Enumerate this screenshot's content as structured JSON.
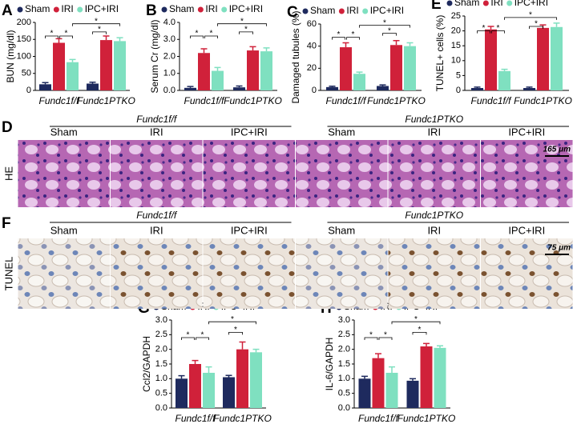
{
  "chart_data": [
    {
      "type": "bar",
      "panel": "A",
      "y_label": "BUN (mg/dl)",
      "categories": [
        "Fundc1f/f",
        "Fundc1PTKO"
      ],
      "significance": "*",
      "ylim": [
        0,
        200
      ],
      "yticks": [
        0,
        50,
        100,
        150,
        200
      ],
      "series": [
        {
          "name": "Sham",
          "color": "#1e2a5e",
          "values": [
            18,
            20
          ],
          "errors": [
            5,
            4
          ]
        },
        {
          "name": "IRI",
          "color": "#d0213a",
          "values": [
            140,
            148
          ],
          "errors": [
            12,
            12
          ]
        },
        {
          "name": "IPC+IRI",
          "color": "#7fe0c0",
          "values": [
            83,
            145
          ],
          "errors": [
            8,
            10
          ]
        }
      ]
    },
    {
      "type": "bar",
      "panel": "B",
      "y_label": "Serum Cr (mg/dl)",
      "categories": [
        "Fundc1f/f",
        "Fundc1PTKO"
      ],
      "significance": "*",
      "ylim": [
        0,
        4
      ],
      "yticks": [
        {
          "value": 0,
          "label": "0.0"
        },
        {
          "value": 1,
          "label": "1.0"
        },
        {
          "value": 2,
          "label": "2.0"
        },
        {
          "value": 3,
          "label": "3.0"
        },
        {
          "value": 4,
          "label": "4.0"
        }
      ],
      "series": [
        {
          "name": "Sham",
          "color": "#1e2a5e",
          "values": [
            0.15,
            0.18
          ],
          "errors": [
            0.08,
            0.08
          ]
        },
        {
          "name": "IRI",
          "color": "#d0213a",
          "values": [
            2.2,
            2.35
          ],
          "errors": [
            0.25,
            0.22
          ]
        },
        {
          "name": "IPC+IRI",
          "color": "#7fe0c0",
          "values": [
            1.15,
            2.3
          ],
          "errors": [
            0.2,
            0.2
          ]
        }
      ]
    },
    {
      "type": "bar",
      "panel": "C",
      "y_label": "Damaged tubules (%)",
      "categories": [
        "Fundc1f/f",
        "Fundc1PTKO"
      ],
      "significance": "*",
      "ylim": [
        0,
        60
      ],
      "yticks": [
        0,
        20,
        40,
        60
      ],
      "series": [
        {
          "name": "Sham",
          "color": "#1e2a5e",
          "values": [
            3,
            4
          ],
          "errors": [
            0.8,
            1
          ]
        },
        {
          "name": "IRI",
          "color": "#d0213a",
          "values": [
            39,
            41
          ],
          "errors": [
            4,
            4
          ]
        },
        {
          "name": "IPC+IRI",
          "color": "#7fe0c0",
          "values": [
            15,
            40
          ],
          "errors": [
            1.5,
            3
          ]
        }
      ]
    },
    {
      "type": "bar",
      "panel": "E",
      "y_label": "TUNEL+ cells (%)",
      "categories": [
        "Fundc1f/f",
        "Fundc1PTKO"
      ],
      "significance": "*",
      "ylim": [
        0,
        25
      ],
      "yticks": [
        0,
        5,
        10,
        15,
        20,
        25
      ],
      "series": [
        {
          "name": "Sham",
          "color": "#1e2a5e",
          "values": [
            0.8,
            0.8
          ],
          "errors": [
            0.3,
            0.3
          ]
        },
        {
          "name": "IRI",
          "color": "#d0213a",
          "values": [
            20.5,
            21
          ],
          "errors": [
            1,
            1
          ]
        },
        {
          "name": "IPC+IRI",
          "color": "#7fe0c0",
          "values": [
            6.5,
            21.3
          ],
          "errors": [
            0.6,
            1.3
          ]
        }
      ]
    },
    {
      "type": "bar",
      "panel": "G",
      "y_label": "Ccl2/GAPDH",
      "categories": [
        "Fundc1f/f",
        "Fundc1PTKO"
      ],
      "significance": "*",
      "ylim": [
        0,
        3
      ],
      "yticks": [
        {
          "value": 0,
          "label": "0.0"
        },
        {
          "value": 0.5,
          "label": "0.5"
        },
        {
          "value": 1,
          "label": "1.0"
        },
        {
          "value": 1.5,
          "label": "1.5"
        },
        {
          "value": 2,
          "label": "2.0"
        },
        {
          "value": 2.5,
          "label": "2.5"
        },
        {
          "value": 3,
          "label": "3.0"
        }
      ],
      "series": [
        {
          "name": "Sham",
          "color": "#1e2a5e",
          "values": [
            1.0,
            1.05
          ],
          "errors": [
            0.1,
            0.06
          ]
        },
        {
          "name": "IRI",
          "color": "#d0213a",
          "values": [
            1.5,
            2.0
          ],
          "errors": [
            0.12,
            0.25
          ]
        },
        {
          "name": "IPC+IRI",
          "color": "#7fe0c0",
          "values": [
            1.2,
            1.9
          ],
          "errors": [
            0.2,
            0.1
          ]
        }
      ]
    },
    {
      "type": "bar",
      "panel": "H",
      "y_label": "IL-6/GAPDH",
      "categories": [
        "Fundc1f/f",
        "Fundc1PTKO"
      ],
      "significance": "*",
      "ylim": [
        0,
        3
      ],
      "yticks": [
        {
          "value": 0,
          "label": "0.0"
        },
        {
          "value": 0.5,
          "label": "0.5"
        },
        {
          "value": 1,
          "label": "1.0"
        },
        {
          "value": 1.5,
          "label": "1.5"
        },
        {
          "value": 2,
          "label": "2.0"
        },
        {
          "value": 2.5,
          "label": "2.5"
        },
        {
          "value": 3,
          "label": "3.0"
        }
      ],
      "series": [
        {
          "name": "Sham",
          "color": "#1e2a5e",
          "values": [
            1.0,
            0.93
          ],
          "errors": [
            0.08,
            0.07
          ]
        },
        {
          "name": "IRI",
          "color": "#d0213a",
          "values": [
            1.7,
            2.1
          ],
          "errors": [
            0.15,
            0.1
          ]
        },
        {
          "name": "IPC+IRI",
          "color": "#7fe0c0",
          "values": [
            1.2,
            2.05
          ],
          "errors": [
            0.2,
            0.07
          ]
        }
      ]
    }
  ],
  "micrographs": [
    {
      "panel": "D",
      "stain": "HE",
      "groups": [
        "Fundc1f/f",
        "Fundc1PTKO"
      ],
      "conditions": [
        "Sham",
        "IRI",
        "IPC+IRI"
      ],
      "scale": "165 μm"
    },
    {
      "panel": "F",
      "stain": "TUNEL",
      "groups": [
        "Fundc1f/f",
        "Fundc1PTKO"
      ],
      "conditions": [
        "Sham",
        "IRI",
        "IPC+IRI"
      ],
      "scale": "75 μm"
    }
  ]
}
